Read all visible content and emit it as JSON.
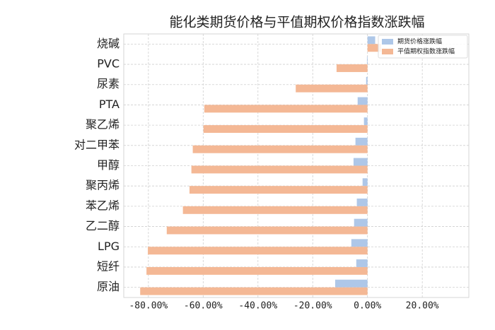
{
  "chart_data": {
    "type": "barh",
    "title": "能化类期货价格与平值期权价格指数涨跌幅",
    "categories": [
      "烧碱",
      "PVC",
      "尿素",
      "PTA",
      "聚乙烯",
      "对二甲苯",
      "甲醇",
      "聚丙烯",
      "苯乙烯",
      "乙二醇",
      "LPG",
      "短纤",
      "原油"
    ],
    "series": [
      {
        "name": "期货价格涨跌幅",
        "color": "#aec7e8",
        "values": [
          2.8,
          -0.2,
          -0.5,
          -3.6,
          -1.3,
          -4.4,
          -5.1,
          -1.8,
          -3.9,
          -4.9,
          -5.9,
          -4.1,
          -11.8
        ]
      },
      {
        "name": "平值期权指数涨跌幅",
        "color": "#f4b895",
        "values": [
          5,
          -11.3,
          -26.2,
          -59.6,
          -59.9,
          -63.8,
          -64.3,
          -65.0,
          -67.4,
          -73.3,
          -80.2,
          -80.7,
          -83.0
        ]
      }
    ],
    "xlim": [
      -89,
      37
    ],
    "xticks": [
      {
        "value": -80,
        "label": "-80.00%"
      },
      {
        "value": -60,
        "label": "-60.00%"
      },
      {
        "value": -40,
        "label": "-40.00%"
      },
      {
        "value": -20,
        "label": "-20.00%"
      },
      {
        "value": 0,
        "label": "0.00%"
      },
      {
        "value": 20,
        "label": "20.00%"
      }
    ],
    "grid": true,
    "legend": "upper right"
  }
}
